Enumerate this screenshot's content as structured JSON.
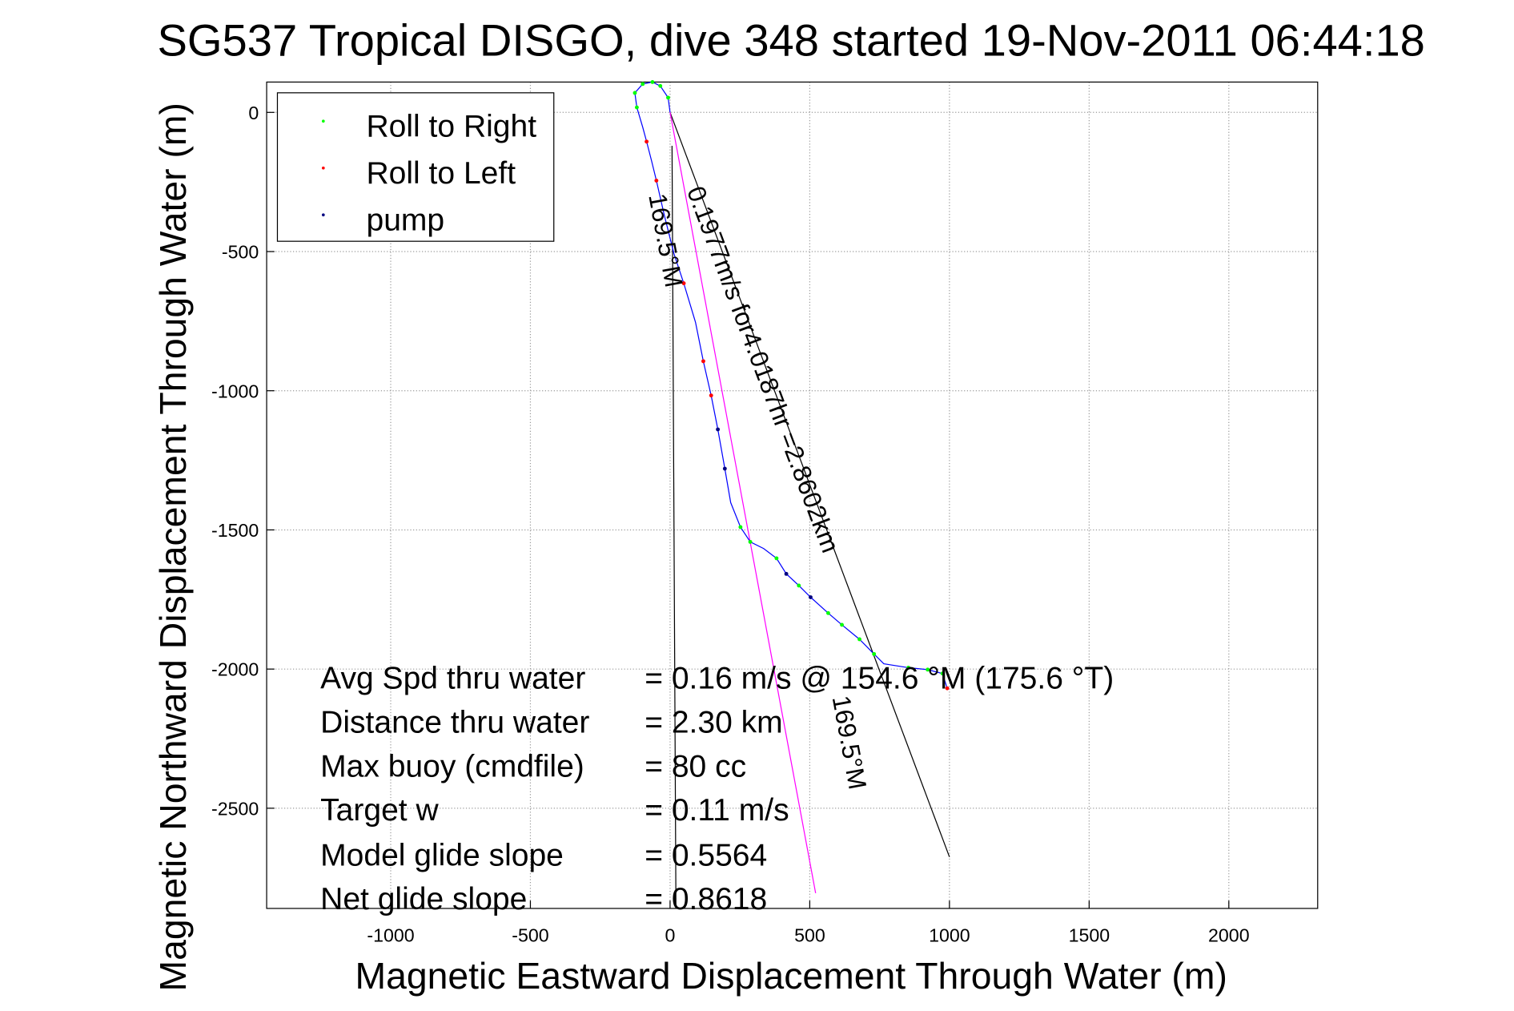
{
  "chart_data": {
    "type": "line",
    "title": "SG537 Tropical DISGO, dive 348 started 19-Nov-2011 06:44:18",
    "xlabel": "Magnetic Eastward Displacement Through Water (m)",
    "ylabel": "Magnetic Northward Displacement Through Water (m)",
    "xlim": [
      -1444,
      2318
    ],
    "ylim": [
      -2860,
      109
    ],
    "grid": true,
    "xticks": [
      -1000,
      -500,
      0,
      500,
      1000,
      1500,
      2000
    ],
    "yticks": [
      0,
      -500,
      -1000,
      -1500,
      -2000,
      -2500
    ],
    "legend": {
      "placement": "top-left",
      "entries": [
        {
          "label": "Roll to Right",
          "color": "#00ff00"
        },
        {
          "label": "Roll to Left",
          "color": "#ff0000"
        },
        {
          "label": "pump",
          "color": "#000080"
        }
      ]
    },
    "track": {
      "color": "#0000ff",
      "x": [
        0,
        -7,
        -35,
        -63,
        -98,
        -126,
        -119,
        -98,
        -84,
        -66,
        -49,
        -21,
        14,
        49,
        91,
        119,
        147,
        171,
        196,
        217,
        252,
        287,
        335,
        381,
        416,
        461,
        503,
        566,
        615,
        678,
        730,
        765,
        853,
        922,
        975,
        992
      ],
      "y": [
        0,
        53,
        95,
        109,
        102,
        70,
        18,
        -53,
        -105,
        -175,
        -245,
        -368,
        -508,
        -614,
        -754,
        -894,
        -1017,
        -1139,
        -1280,
        -1402,
        -1490,
        -1543,
        -1567,
        -1602,
        -1658,
        -1700,
        -1742,
        -1799,
        -1841,
        -1893,
        -1946,
        -1981,
        -1995,
        -2002,
        -2016,
        -2069
      ]
    },
    "roll_right_points": {
      "x": [
        -126,
        -119,
        -98,
        -63,
        -35,
        -7,
        252,
        287,
        381,
        461,
        566,
        615,
        678,
        730,
        853,
        922,
        975
      ],
      "y": [
        70,
        18,
        102,
        109,
        95,
        53,
        -1490,
        -1543,
        -1602,
        -1700,
        -1799,
        -1841,
        -1893,
        -1946,
        -1995,
        -2002,
        -2016
      ]
    },
    "roll_left_points": {
      "x": [
        -84,
        -49,
        49,
        119,
        147,
        992
      ],
      "y": [
        -105,
        -245,
        -614,
        -894,
        -1017,
        -2069
      ]
    },
    "pump_points": {
      "x": [
        171,
        196,
        416,
        503
      ],
      "y": [
        -1139,
        -1280,
        -1658,
        -1742
      ]
    },
    "lines": [
      {
        "name": "current",
        "color": "#000000",
        "x": [
          0,
          1000
        ],
        "y": [
          0,
          -2675
        ]
      },
      {
        "name": "heading-ref",
        "color": "#000000",
        "x": [
          7,
          21
        ],
        "y": [
          -120,
          -2860
        ]
      },
      {
        "name": "heading",
        "color": "#ff00ff",
        "x": [
          0,
          521
        ],
        "y": [
          0,
          -2805
        ]
      }
    ],
    "annotations": {
      "current": "0.1977m/s for4.0187hr =2.8602km",
      "heading_top": "169.5°M",
      "heading_bottom": "169.5°M"
    },
    "stats": [
      {
        "label": "Avg Spd thru water",
        "value": "=  0.16 m/s @ 154.6 °M (175.6 °T)"
      },
      {
        "label": "Distance thru water",
        "value": "=  2.30 km"
      },
      {
        "label": "Max buoy (cmdfile)",
        "value": "= 80 cc"
      },
      {
        "label": "Target w",
        "value": "= 0.11 m/s"
      },
      {
        "label": "Model glide slope",
        "value": "= 0.5564"
      },
      {
        "label": "Net glide slope",
        "value": "= 0.8618"
      }
    ]
  }
}
